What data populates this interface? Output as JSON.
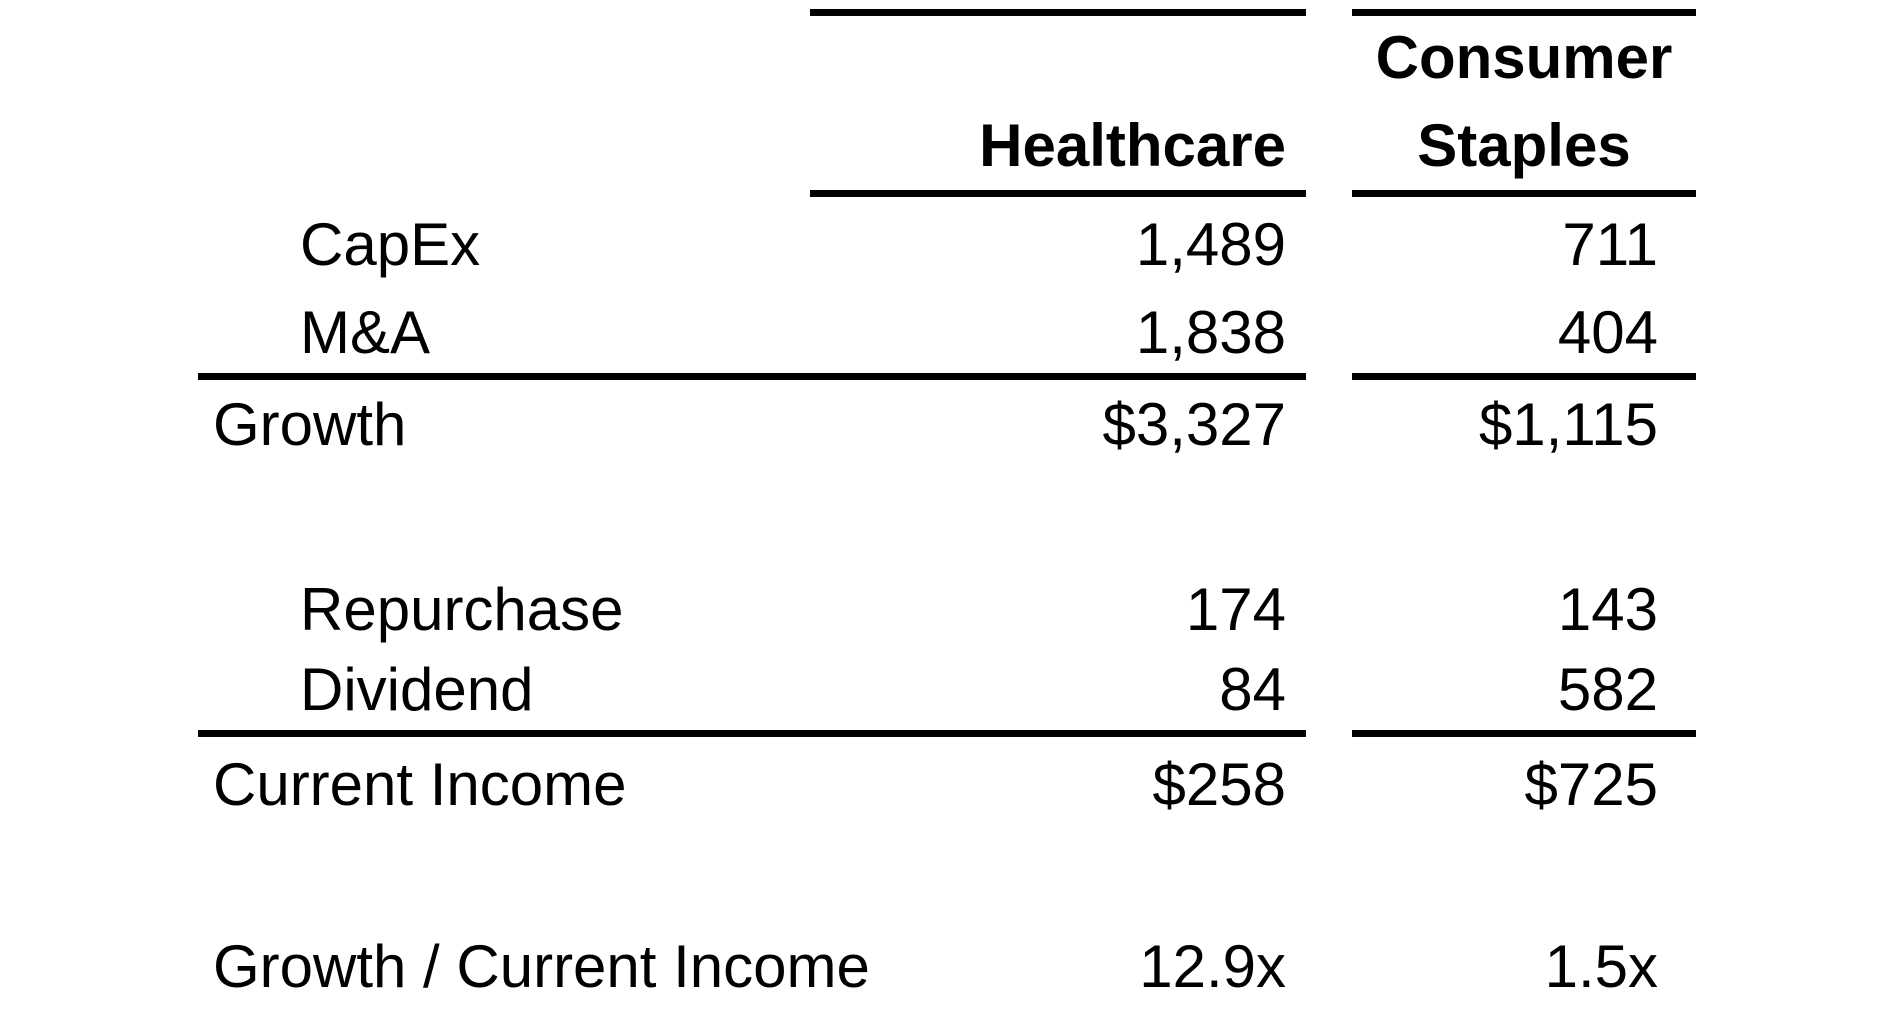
{
  "table": {
    "header": {
      "healthcare": "Healthcare",
      "consumer_staples_line1": "Consumer",
      "consumer_staples_line2": "Staples"
    },
    "rows": [
      {
        "label": "CapEx",
        "healthcare": "1,489",
        "consumer_staples": "711"
      },
      {
        "label": "M&A",
        "healthcare": "1,838",
        "consumer_staples": "404"
      },
      {
        "label": "Growth",
        "healthcare": "$3,327",
        "consumer_staples": "$1,115"
      },
      {
        "label": "Repurchase",
        "healthcare": "174",
        "consumer_staples": "143"
      },
      {
        "label": "Dividend",
        "healthcare": "84",
        "consumer_staples": "582"
      },
      {
        "label": "Current Income",
        "healthcare": "$258",
        "consumer_staples": "$725"
      },
      {
        "label": "Growth / Current Income",
        "healthcare": "12.9x",
        "consumer_staples": "1.5x"
      }
    ],
    "colors": {
      "text": "#000000",
      "background": "#ffffff",
      "rule": "#000000"
    }
  }
}
